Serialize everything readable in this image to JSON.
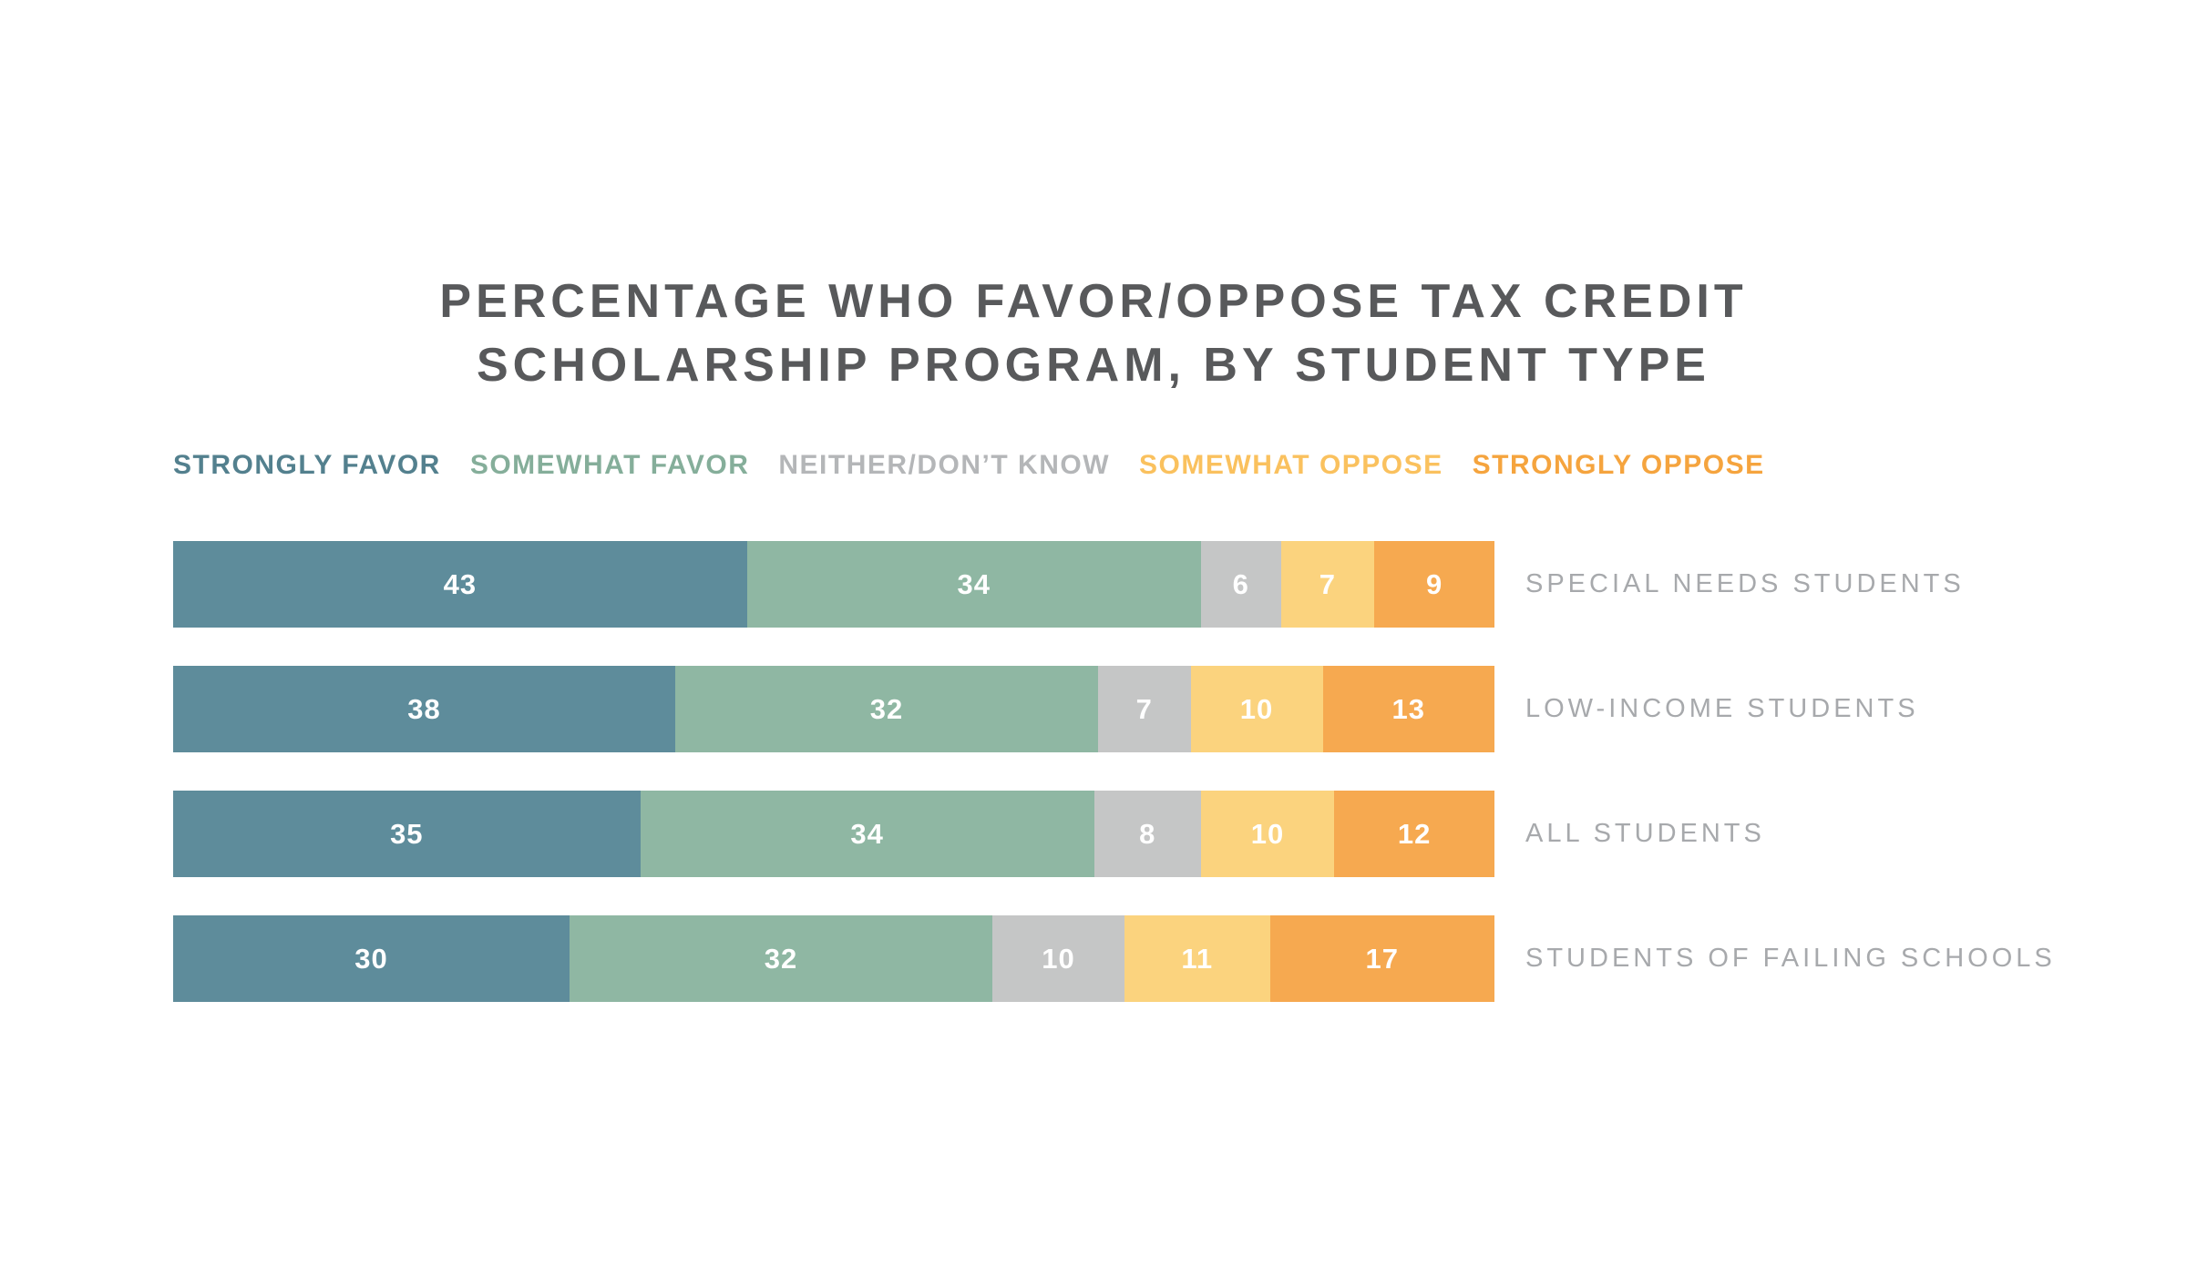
{
  "title": {
    "line1": "PERCENTAGE WHO FAVOR/OPPOSE TAX CREDIT",
    "line2": "SCHOLARSHIP PROGRAM, BY STUDENT TYPE"
  },
  "legend": [
    {
      "label": "STRONGLY FAVOR",
      "color": "#53808E"
    },
    {
      "label": "SOMEWHAT FAVOR",
      "color": "#85AE9A"
    },
    {
      "label": "NEITHER/DON’T KNOW",
      "color": "#B4B6B8"
    },
    {
      "label": "SOMEWHAT OPPOSE",
      "color": "#FAC15E"
    },
    {
      "label": "STRONGLY OPPOSE",
      "color": "#F5A43E"
    }
  ],
  "chart_data": {
    "type": "bar",
    "stacked": true,
    "orientation": "horizontal",
    "title": "PERCENTAGE WHO FAVOR/OPPOSE TAX CREDIT SCHOLARSHIP PROGRAM, BY STUDENT TYPE",
    "value_unit": "percent",
    "xlim": [
      0,
      100
    ],
    "grid": false,
    "legend_position": "top-left",
    "categories": [
      "SPECIAL NEEDS STUDENTS",
      "LOW-INCOME STUDENTS",
      "ALL STUDENTS",
      "STUDENTS OF FAILING SCHOOLS"
    ],
    "series": [
      {
        "name": "STRONGLY FAVOR",
        "color": "#5E8C9B",
        "values": [
          43,
          38,
          35,
          30
        ]
      },
      {
        "name": "SOMEWHAT FAVOR",
        "color": "#8FB7A3",
        "values": [
          34,
          32,
          34,
          32
        ]
      },
      {
        "name": "NEITHER/DON’T KNOW",
        "color": "#C5C6C6",
        "values": [
          6,
          7,
          8,
          10
        ]
      },
      {
        "name": "SOMEWHAT OPPOSE",
        "color": "#FBD37E",
        "values": [
          7,
          10,
          10,
          11
        ]
      },
      {
        "name": "STRONGLY OPPOSE",
        "color": "#F6A950",
        "values": [
          9,
          13,
          12,
          17
        ]
      }
    ]
  }
}
